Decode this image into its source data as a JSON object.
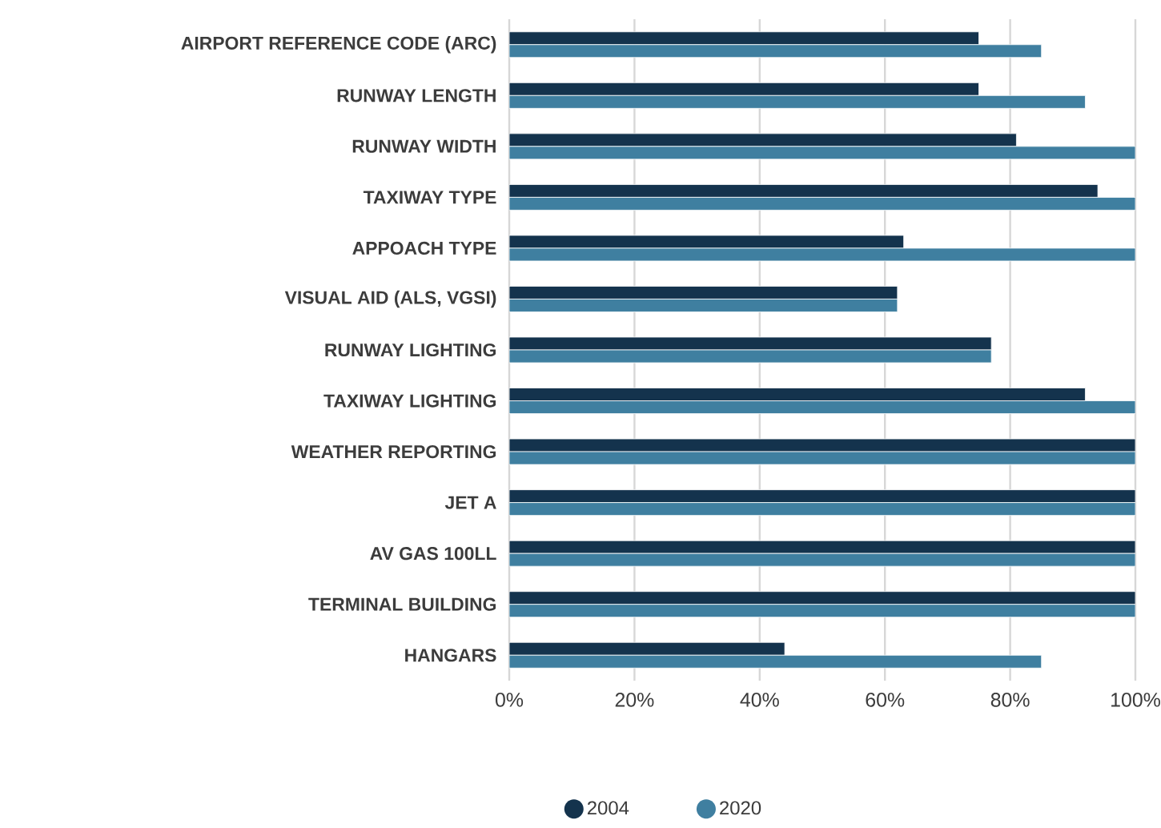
{
  "chart_data": {
    "type": "bar",
    "orientation": "horizontal",
    "categories": [
      "AIRPORT REFERENCE CODE (ARC)",
      "RUNWAY LENGTH",
      "RUNWAY WIDTH",
      "TAXIWAY TYPE",
      "APPOACH TYPE",
      "VISUAL AID (ALS, VGSI)",
      "RUNWAY LIGHTING",
      "TAXIWAY LIGHTING",
      "WEATHER REPORTING",
      "JET A",
      "AV GAS 100LL",
      "TERMINAL BUILDING",
      "HANGARS"
    ],
    "series": [
      {
        "name": "2004",
        "color": "#14334d",
        "values": [
          75,
          75,
          81,
          94,
          63,
          62,
          77,
          92,
          100,
          100,
          100,
          100,
          44
        ]
      },
      {
        "name": "2020",
        "color": "#3f7fa0",
        "values": [
          85,
          92,
          100,
          100,
          100,
          62,
          77,
          100,
          100,
          100,
          100,
          100,
          85
        ]
      }
    ],
    "xlim": [
      0,
      100
    ],
    "xticks": [
      {
        "value": 0,
        "label": "0%"
      },
      {
        "value": 20,
        "label": "20%"
      },
      {
        "value": 40,
        "label": "40%"
      },
      {
        "value": 60,
        "label": "60%"
      },
      {
        "value": 80,
        "label": "80%"
      },
      {
        "value": 100,
        "label": "100%"
      }
    ],
    "grid": "x",
    "legend": "bottom"
  }
}
